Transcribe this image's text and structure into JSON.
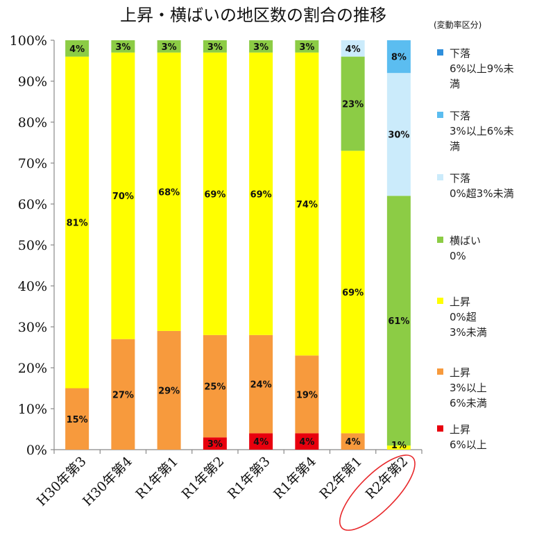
{
  "chart_data": {
    "type": "bar",
    "stacked": true,
    "title": "上昇・横ばいの地区数の割合の推移",
    "legend_title": "(変動率区分)",
    "legend_position": "right",
    "categories": [
      "H30年第3",
      "H30年第4",
      "R1年第1",
      "R1年第2",
      "R1年第3",
      "R1年第4",
      "R2年第1",
      "R2年第2"
    ],
    "highlight_category": "R2年第2",
    "yticks": [
      "0%",
      "10%",
      "20%",
      "30%",
      "40%",
      "50%",
      "60%",
      "70%",
      "80%",
      "90%",
      "100%"
    ],
    "ylim": [
      0,
      100
    ],
    "grid": false,
    "series": [
      {
        "name_lines": [
          "上昇",
          "6%以上"
        ],
        "color": "#e8000e",
        "values": [
          0,
          0,
          0,
          3,
          4,
          4,
          0,
          0
        ],
        "labels": [
          "",
          "",
          "",
          "3%",
          "4%",
          "4%",
          "",
          ""
        ]
      },
      {
        "name_lines": [
          "上昇",
          "3%以上",
          "6%未満"
        ],
        "color": "#f79a3d",
        "values": [
          15,
          27,
          29,
          25,
          24,
          19,
          4,
          0
        ],
        "labels": [
          "15%",
          "27%",
          "29%",
          "25%",
          "24%",
          "19%",
          "4%",
          ""
        ]
      },
      {
        "name_lines": [
          "上昇",
          "0%超",
          "3%未満"
        ],
        "color": "#ffff00",
        "values": [
          81,
          70,
          68,
          69,
          69,
          74,
          69,
          1
        ],
        "labels": [
          "81%",
          "70%",
          "68%",
          "69%",
          "69%",
          "74%",
          "69%",
          "1%"
        ]
      },
      {
        "name_lines": [
          "横ばい",
          "0%"
        ],
        "color": "#8ccc45",
        "values": [
          4,
          3,
          3,
          3,
          3,
          3,
          23,
          61
        ],
        "labels": [
          "4%",
          "3%",
          "3%",
          "3%",
          "3%",
          "3%",
          "23%",
          "61%"
        ]
      },
      {
        "name_lines": [
          "下落",
          "0%超3%未満"
        ],
        "color": "#cbebfb",
        "values": [
          0,
          0,
          0,
          0,
          0,
          0,
          4,
          30
        ],
        "labels": [
          "",
          "",
          "",
          "",
          "",
          "",
          "4%",
          "30%"
        ]
      },
      {
        "name_lines": [
          "下落",
          "3%以上6%未",
          "満"
        ],
        "color": "#5bbdf0",
        "values": [
          0,
          0,
          0,
          0,
          0,
          0,
          0,
          8
        ],
        "labels": [
          "",
          "",
          "",
          "",
          "",
          "",
          "",
          "8%"
        ]
      },
      {
        "name_lines": [
          "下落",
          "6%以上9%未",
          "満"
        ],
        "color": "#2f8fdc",
        "values": [
          0,
          0,
          0,
          0,
          0,
          0,
          0,
          0
        ],
        "labels": [
          "",
          "",
          "",
          "",
          "",
          "",
          "",
          ""
        ]
      }
    ]
  }
}
